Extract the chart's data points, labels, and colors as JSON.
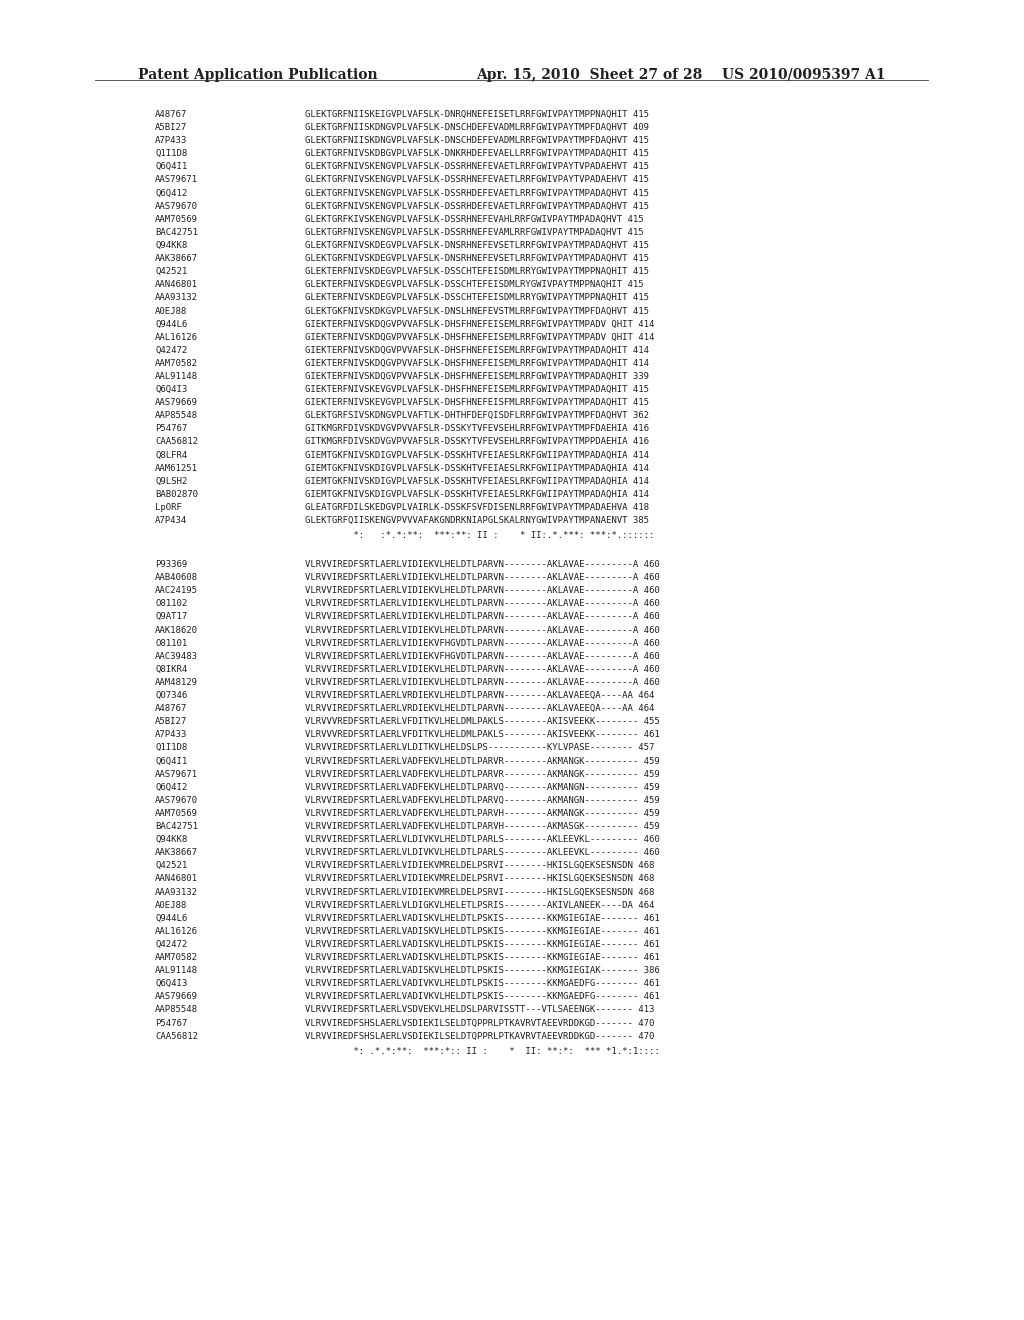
{
  "header_left": "Patent Application Publication",
  "header_center": "Apr. 15, 2010  Sheet 27 of 28",
  "header_right": "US 2010/0095397 A1",
  "bg_color": "#ffffff",
  "text_color": "#231f20",
  "font_size": 6.5,
  "header_font_size": 10.0,
  "block1": [
    [
      "A48767",
      "GLEKTGRFNIISKEIGVPLVAFSLK-DNRQHNEFEISETLRRFGWIVPAYTMPPNAQHIT 415"
    ],
    [
      "A5BI27",
      "GLEKTGRFNIISKDNGVPLVAFSLK-DNSCHDEFEVADMLRRFGWIVPAYTMPFDAQHVT 409"
    ],
    [
      "A7P433",
      "GLEKTGRFNIISKDNGVPLVAFSLK-DNSCHDEFEVADMLRRFGWIVPAYTMPFDAQHVT 415"
    ],
    [
      "Q1I1D8",
      "GLEKTGRFNIVSKDBGVPLVAFSLK-DNKRHDEFEVAELLRRFGWIVPAYTMPADAQHIT 415"
    ],
    [
      "Q6Q4I1",
      "GLEKTGRFNIVSKENGVPLVAFSLK-DSSRHNEFEVAETLRRFGWIVPAYTVPADAEHVT 415"
    ],
    [
      "AAS79671",
      "GLEKTGRFNIVSKENGVPLVAFSLK-DSSRHNEFEVAETLRRFGWIVPAYTVPADAEHVT 415"
    ],
    [
      "Q6Q412",
      "GLEKTGRFNIVSKENGVPLVAFSLK-DSSRHDEFEVAETLRRFGWIVPAYTMPADAQHVT 415"
    ],
    [
      "AAS79670",
      "GLEKTGRFNIVSKENGVPLVAFSLK-DSSRHDEFEVAETLRRFGWIVPAYTMPADAQHVT 415"
    ],
    [
      "AAM70569",
      "GLEKTGRFKIVSKENGVPLVAFSLK-DSSRHNEFEVAHLRRFGWIVPAYTMPADAQHVT 415"
    ],
    [
      "BAC42751",
      "GLEKTGRFNIVSKENGVPLVAFSLK-DSSRHNEFEVAMLRRFGWIVPAYTMPADAQHVT 415"
    ],
    [
      "Q94KK8",
      "GLEKTGRFNIVSKDEGVPLVAFSLK-DNSRHNEFEVSETLRRFGWIVPAYTMPADAQHVT 415"
    ],
    [
      "AAK38667",
      "GLEKTGRFNIVSKDEGVPLVAFSLK-DNSRHNEFEVSETLRRFGWIVPAYTMPADAQHVT 415"
    ],
    [
      "Q42521",
      "GLEKTERFNIVSKDEGVPLVAFSLK-DSSCHTEFEISDMLRRYGWIVPAYTMPPNAQHIT 415"
    ],
    [
      "AAN46801",
      "GLEKTERFNIVSKDEGVPLVAFSLK-DSSCHTEFEISDMLRYGWIVPAYTMPPNAQHIT 415"
    ],
    [
      "AAA93132",
      "GLEKTERFNIVSKDEGVPLVAFSLK-DSSCHTEFEISDMLRRYGWIVPAYTMPPNAQHIT 415"
    ],
    [
      "A0EJ88",
      "GLEKTGKFNIVSKDKGVPLVAFSLK-DNSLHNEFEVSTMLRRFGWIVPAYTMPFDAQHVT 415"
    ],
    [
      "Q944L6",
      "GIEKTERFNIVSKDQGVPVVAFSLK-DHSFHNEFEISEMLRRFGWIVPAYTMPADV QHIT 414"
    ],
    [
      "AAL16126",
      "GIEKTERFNIVSKDQGVPVVAFSLK-DHSFHNEFEISEMLRRFGWIVPAYTMPADV QHIT 414"
    ],
    [
      "Q42472",
      "GIEKTERFNIVSKDQGVPVVAFSLK-DHSFHNEFEISEMLRRFGWIVPAYTMPADAQHIT 414"
    ],
    [
      "AAM70582",
      "GIEKTERFNIVSKDQGVPVVAFSLK-DHSFHNEFEISEMLRRFGWIVPAYTMPADAQHIT 414"
    ],
    [
      "AAL91148",
      "GIEKTERFNIVSKDQGVPVVAFSLK-DHSFHNEFEISEMLRRFGWIVPAYTMPADAQHIT 339"
    ],
    [
      "Q6Q4I3",
      "GIEKTERFNIVSKEVGVPLVAFSLK-DHSFHNEFEISEMLRRFGWIVPAYTMPADAQHIT 415"
    ],
    [
      "AAS79669",
      "GIEKTERFNIVSKEVGVPLVAFSLK-DHSFHNEFEISFMLRRFGWIVPAYTMPADAQHIT 415"
    ],
    [
      "AAP85548",
      "GLEKTGRFSIVSKDNGVPLVAFTLK-DHTHFDEFQISDFLRRFGWIVPAYTMPFDAQHVT 362"
    ],
    [
      "P54767",
      "GITKMGRFDIVSKDVGVPVVAFSLR-DSSKYTVFEVSEHLRRFGWIVPAYTMPFDAEHIA 416"
    ],
    [
      "CAA56812",
      "GITKMGRFDIVSKDVGVPVVAFSLR-DSSKYTVFEVSEHLRRFGWIVPAYTMPPDAEHIA 416"
    ],
    [
      "Q8LFR4",
      "GIEMTGKFNIVSKDIGVPLVAFSLK-DSSKHTVFEIAESLRKFGWIIPAYTMPADAQHIA 414"
    ],
    [
      "AAM61251",
      "GIEMTGKFNIVSKDIGVPLVAFSLK-DSSKHTVFEIAESLRKFGWIIPAYTMPADAQHIA 414"
    ],
    [
      "Q9LSH2",
      "GIEMTGKFNIVSKDIGVPLVAFSLK-DSSKHTVFEIAESLRKFGWIIPAYTMPADAQHIA 414"
    ],
    [
      "BAB02870",
      "GIEMTGKFNIVSKDIGVPLVAFSLK-DSSKHTVFEIAESLRKFGWIIPAYTMPADAQHIA 414"
    ],
    [
      "LpORF",
      "GLEATGRFDILSKEDGVPLVAIRLK-DSSKFSVFDISENLRRFGWIVPAYTMPADAEHVA 418"
    ],
    [
      "A7P434",
      "GLEKTGRFQIISKENGVPVVVAFAKGNDRKNIAPGLSKALRNYGWIVPAYTMPANAENVT 385"
    ]
  ],
  "consensus1": "         *:   :*.*:**:  ***:**: II :    * II:.*.***: ***:*.::::::",
  "block2": [
    [
      "P93369",
      "VLRVVIREDFSRTLAERLVIDIEKVLHELDTLPARVN--------AKLAVAE---------A 460"
    ],
    [
      "AAB40608",
      "VLRVVIREDFSRTLAERLVIDIEKVLHELDTLPARVN--------AKLAVAE---------A 460"
    ],
    [
      "AAC24195",
      "VLRVVIREDFSRTLAERLVIDIEKVLHELDTLPARVN--------AKLAVAE---------A 460"
    ],
    [
      "O81102",
      "VLRVVIREDFSRTLAERLVIDIEKVLHELDTLPARVN--------AKLAVAE---------A 460"
    ],
    [
      "Q9AT17",
      "VLRVVIREDFSRTLAERLVIDIEKVLHELDTLPARVN--------AKLAVAE---------A 460"
    ],
    [
      "AAK18620",
      "VLRVVIREDFSRTLAERLVIDIEKVLHELDTLPARVN--------AKLAVAE---------A 460"
    ],
    [
      "O81101",
      "VLRVVIREDFSRTLAERLVIDIEKVFHGVDTLPARVN--------AKLAVAE---------A 460"
    ],
    [
      "AAC39483",
      "VLRVVIREDFSRTLAERLVIDIEKVFHGVDTLPARVN--------AKLAVAE---------A 460"
    ],
    [
      "Q8IKR4",
      "VLRVVIREDFSRTLAERLVIDIEKVLHELDTLPARVN--------AKLAVAE---------A 460"
    ],
    [
      "AAM48129",
      "VLRVVIREDFSRTLAERLVIDIEKVLHELDTLPARVN--------AKLAVAE---------A 460"
    ],
    [
      "Q07346",
      "VLRVVIREDFSRTLAERLVRDIEKVLHELDTLPARVN--------AKLAVAEEQA----AA 464"
    ],
    [
      "A48767",
      "VLRVVIREDFSRTLAERLVRDIEKVLHELDTLPARVN--------AKLAVAEEQA----AA 464"
    ],
    [
      "A5BI27",
      "VLRVVVREDFSRTLAERLVFDITKVLHELDMLPAKLS--------AKISVEEKK-------- 455"
    ],
    [
      "A7P433",
      "VLRVVVREDFSRTLAERLVFDITKVLHELDMLPAKLS--------AKISVEEKK-------- 461"
    ],
    [
      "Q1I1D8",
      "VLRVVIREDFSRTLAERLVLDITKVLHELDSLPS-----------KYLVPASE-------- 457"
    ],
    [
      "Q6Q4I1",
      "VLRVVIREDFSRTLAERLVADFEKVLHELDTLPARVR--------AKMANGK---------- 459"
    ],
    [
      "AAS79671",
      "VLRVVIREDFSRTLAERLVADFEKVLHELDTLPARVR--------AKMANGK---------- 459"
    ],
    [
      "Q6Q4I2",
      "VLRVVIREDFSRTLAERLVADFEKVLHELDTLPARVQ--------AKMANGN---------- 459"
    ],
    [
      "AAS79670",
      "VLRVVIREDFSRTLAERLVADFEKVLHELDTLPARVQ--------AKMANGN---------- 459"
    ],
    [
      "AAM70569",
      "VLRVVIREDFSRTLAERLVADFEKVLHELDTLPARVH--------AKMANGK---------- 459"
    ],
    [
      "BAC42751",
      "VLRVVIREDFSRTLAERLVADFEKVLHELDTLPARVH--------AKMASGK---------- 459"
    ],
    [
      "Q94KK8",
      "VLRVVIREDFSRTLAERLVLDIVKVLHELDTLPARLS--------AKLEEVKL--------- 460"
    ],
    [
      "AAK38667",
      "VLRVVIREDFSRTLAERLVLDIVKVLHELDTLPARLS--------AKLEEVKL--------- 460"
    ],
    [
      "Q42521",
      "VLRVVIREDFSRTLAERLVIDIEKVMRELDELPSRVI--------HKISLGQEKSESNSDN 468"
    ],
    [
      "AAN46801",
      "VLRVVIREDFSRTLAERLVIDIEKVMRELDELPSRVI--------HKISLGQEKSESNSDN 468"
    ],
    [
      "AAA93132",
      "VLRVVIREDFSRTLAERLVIDIEKVMRELDELPSRVI--------HKISLGQEKSESNSDN 468"
    ],
    [
      "A0EJ88",
      "VLRVVIREDFSRTLAERLVLDIGKVLHELETLPSRIS--------AKIVLANEEK----DA 464"
    ],
    [
      "Q944L6",
      "VLRVVIREDFSRTLAERLVADISKVLHELDTLPSKIS--------KKMGIEGIAE------- 461"
    ],
    [
      "AAL16126",
      "VLRVVIREDFSRTLAERLVADISKVLHELDTLPSKIS--------KKMGIEGIAE------- 461"
    ],
    [
      "Q42472",
      "VLRVVIREDFSRTLAERLVADISKVLHELDTLPSKIS--------KKMGIEGIAE------- 461"
    ],
    [
      "AAM70582",
      "VLRVVIREDFSRTLAERLVADISKVLHELDTLPSKIS--------KKMGIEGIAE------- 461"
    ],
    [
      "AAL91148",
      "VLRVVIREDFSRTLAERLVADISKVLHELDTLPSKIS--------KKMGIEGIAK------- 386"
    ],
    [
      "Q6Q4I3",
      "VLRVVIREDFSRTLAERLVADIVKVLHELDTLPSKIS--------KKMGAEDFG-------- 461"
    ],
    [
      "AAS79669",
      "VLRVVIREDFSRTLAERLVADIVKVLHELDTLPSKIS--------KKMGAEDFG-------- 461"
    ],
    [
      "AAP85548",
      "VLRVVIREDFSRTLAERLVSDVEKVLHELDSLPARVISSTT---VTLSAEENGK------- 413"
    ],
    [
      "P54767",
      "VLRVVIREDFSHSLAERLVSDIEKILSELDTQPPRLPTKAVRVTAEEVRDDKGD------- 470"
    ],
    [
      "CAA56812",
      "VLRVVIREDFSHSLAERLVSDIEKILSELDTQPPRLPTKAVRVTAEEVRDDKGD------- 470"
    ]
  ],
  "consensus2": "         *: .*.*:**:  ***:*:: II :    *  II: **:*:  *** *1.*:1::::"
}
